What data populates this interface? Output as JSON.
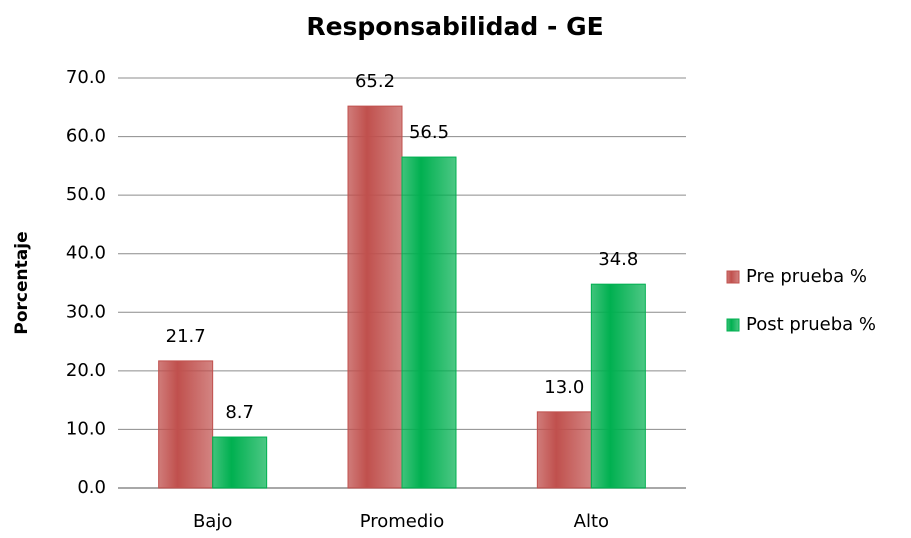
{
  "chart_data": {
    "type": "bar",
    "title": "Responsabilidad - GE",
    "y_label": "Porcentaje",
    "categories": [
      "Bajo",
      "Promedio",
      "Alto"
    ],
    "series": [
      {
        "name": "Pre prueba %",
        "color": "#c0504d",
        "values": [
          21.7,
          65.2,
          13.0
        ],
        "value_labels": [
          "21.7",
          "65.2",
          "13.0"
        ]
      },
      {
        "name": "Post prueba %",
        "color": "#00b050",
        "values": [
          8.7,
          56.5,
          34.8
        ],
        "value_labels": [
          "8.7",
          "56.5",
          "34.8"
        ]
      }
    ],
    "ylim": [
      0,
      70
    ],
    "yticks": [
      {
        "value": 0,
        "label": "0.0"
      },
      {
        "value": 10,
        "label": "10.0"
      },
      {
        "value": 20,
        "label": "20.0"
      },
      {
        "value": 30,
        "label": "30.0"
      },
      {
        "value": 40,
        "label": "40.0"
      },
      {
        "value": 50,
        "label": "50.0"
      },
      {
        "value": 60,
        "label": "60.0"
      },
      {
        "value": 70,
        "label": "70.0"
      }
    ],
    "grid": true,
    "legend": "right"
  }
}
